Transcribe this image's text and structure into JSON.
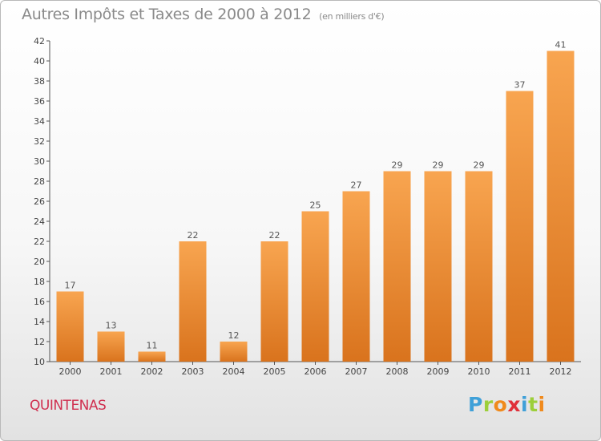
{
  "header": {
    "title": "Autres Impôts et Taxes de 2000 à 2012",
    "unit": "(en milliers d'€)"
  },
  "footer": {
    "commune": "QUINTENAS",
    "logo": "Proxiti"
  },
  "colors": {
    "bar_top": "#f8a550",
    "bar_bottom": "#d9731d",
    "title": "#8a8a8a",
    "commune": "#d03050",
    "logo_letters": [
      "#3fa0d8",
      "#9ccf3a",
      "#f08a1c",
      "#e0303a",
      "#3fa0d8",
      "#9ccf3a",
      "#f08a1c"
    ]
  },
  "chart_data": {
    "type": "bar",
    "title": "Autres Impôts et Taxes de 2000 à 2012",
    "subtitle": "(en milliers d'€)",
    "categories": [
      "2000",
      "2001",
      "2002",
      "2003",
      "2004",
      "2005",
      "2006",
      "2007",
      "2008",
      "2009",
      "2010",
      "2011",
      "2012"
    ],
    "values": [
      17,
      13,
      11,
      22,
      12,
      22,
      25,
      27,
      29,
      29,
      29,
      37,
      41
    ],
    "ylim": [
      10,
      42
    ],
    "yticks": [
      10,
      12,
      14,
      16,
      18,
      20,
      22,
      24,
      26,
      28,
      30,
      32,
      34,
      36,
      38,
      40,
      42
    ],
    "xlabel": "",
    "ylabel": "",
    "grid": false,
    "data_labels": true
  }
}
